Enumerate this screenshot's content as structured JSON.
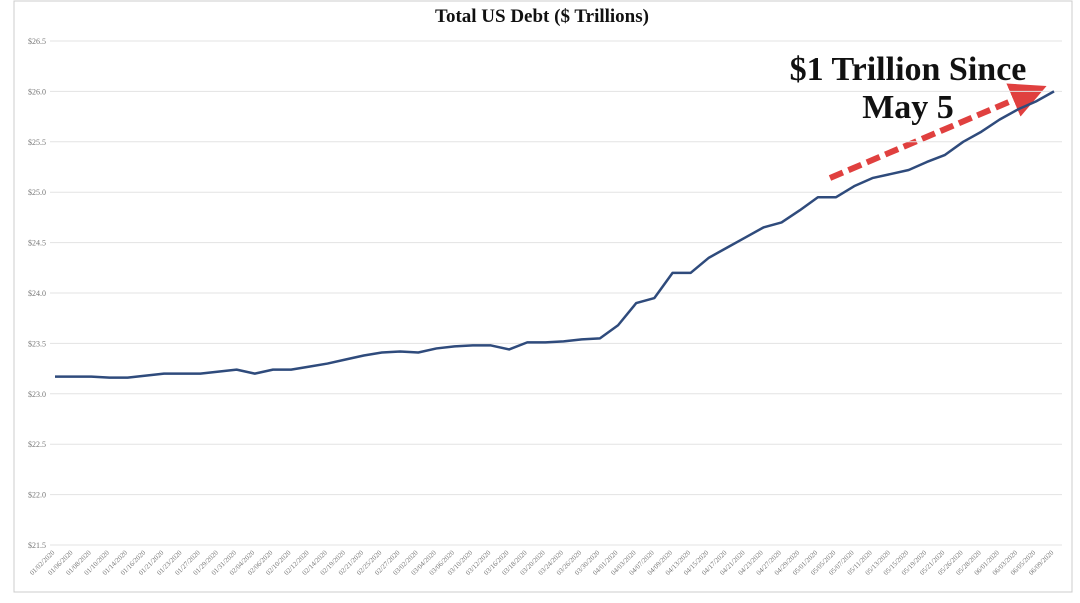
{
  "chart_data": {
    "type": "line",
    "title": "Total US Debt ($ Trillions)",
    "annotation": [
      "$1 Trillion Since",
      "May 5"
    ],
    "categories": [
      "01/02/2020",
      "01/06/2020",
      "01/08/2020",
      "01/10/2020",
      "01/14/2020",
      "01/16/2020",
      "01/21/2020",
      "01/23/2020",
      "01/27/2020",
      "01/29/2020",
      "01/31/2020",
      "02/04/2020",
      "02/06/2020",
      "02/10/2020",
      "02/12/2020",
      "02/14/2020",
      "02/19/2020",
      "02/21/2020",
      "02/25/2020",
      "02/27/2020",
      "03/02/2020",
      "03/04/2020",
      "03/06/2020",
      "03/10/2020",
      "03/12/2020",
      "03/16/2020",
      "03/18/2020",
      "03/20/2020",
      "03/24/2020",
      "03/26/2020",
      "03/30/2020",
      "04/01/2020",
      "04/03/2020",
      "04/07/2020",
      "04/09/2020",
      "04/13/2020",
      "04/15/2020",
      "04/17/2020",
      "04/21/2020",
      "04/23/2020",
      "04/27/2020",
      "04/29/2020",
      "05/01/2020",
      "05/05/2020",
      "05/07/2020",
      "05/11/2020",
      "05/13/2020",
      "05/15/2020",
      "05/19/2020",
      "05/21/2020",
      "05/26/2020",
      "05/28/2020",
      "06/01/2020",
      "06/03/2020",
      "06/05/2020",
      "06/09/2020"
    ],
    "series": [
      {
        "name": "Total US Debt",
        "color": "#2f4b7c",
        "values": [
          23.17,
          23.17,
          23.17,
          23.16,
          23.16,
          23.18,
          23.2,
          23.2,
          23.2,
          23.22,
          23.24,
          23.2,
          23.24,
          23.24,
          23.27,
          23.3,
          23.34,
          23.38,
          23.41,
          23.42,
          23.41,
          23.45,
          23.47,
          23.48,
          23.48,
          23.44,
          23.51,
          23.51,
          23.52,
          23.54,
          23.55,
          23.68,
          23.9,
          23.95,
          24.2,
          24.2,
          24.35,
          24.45,
          24.55,
          24.65,
          24.7,
          24.82,
          24.95,
          24.95,
          25.06,
          25.14,
          25.18,
          25.22,
          25.3,
          25.37,
          25.5,
          25.6,
          25.72,
          25.82,
          25.9,
          26.0
        ]
      }
    ],
    "ylim": [
      21.5,
      26.5
    ],
    "yticks": [
      {
        "value": 21.5,
        "label": "$21.5"
      },
      {
        "value": 22,
        "label": "$22.0"
      },
      {
        "value": 22.5,
        "label": "$22.5"
      },
      {
        "value": 23,
        "label": "$23.0"
      },
      {
        "value": 23.5,
        "label": "$23.5"
      },
      {
        "value": 24,
        "label": "$24.0"
      },
      {
        "value": 24.5,
        "label": "$24.5"
      },
      {
        "value": 25,
        "label": "$25.0"
      },
      {
        "value": 25.5,
        "label": "$25.5"
      },
      {
        "value": 26,
        "label": "$26.0"
      },
      {
        "value": 26.5,
        "label": "$26.5"
      }
    ],
    "grid": true
  }
}
